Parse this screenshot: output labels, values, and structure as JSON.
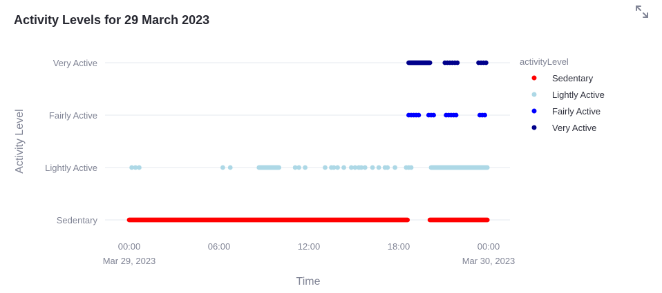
{
  "header": {
    "title": "Activity Levels for 29 March 2023",
    "fullscreen_icon": "expand-icon"
  },
  "chart_data": {
    "type": "scatter",
    "title": "Activity Levels for 29 March 2023",
    "xlabel": "Time",
    "ylabel": "Activity Level",
    "x_ticks": [
      {
        "value": "2023-03-29 00:00",
        "label": "00:00",
        "sublabel": "Mar 29, 2023"
      },
      {
        "value": "2023-03-29 06:00",
        "label": "06:00",
        "sublabel": ""
      },
      {
        "value": "2023-03-29 12:00",
        "label": "12:00",
        "sublabel": ""
      },
      {
        "value": "2023-03-29 18:00",
        "label": "18:00",
        "sublabel": ""
      },
      {
        "value": "2023-03-30 00:00",
        "label": "00:00",
        "sublabel": "Mar 30, 2023"
      }
    ],
    "xlim": [
      "2023-03-28 22:35",
      "2023-03-30 01:23"
    ],
    "categories": [
      "Sedentary",
      "Lightly Active",
      "Fairly Active",
      "Very Active"
    ],
    "grid": true,
    "legend_title": "activityLevel",
    "legend_position": "right",
    "series": [
      {
        "name": "Sedentary",
        "color": "#ff0000",
        "ranges": [
          [
            "2023-03-29 00:00",
            "2023-03-29 18:35"
          ],
          [
            "2023-03-29 20:05",
            "2023-03-29 23:55"
          ]
        ],
        "points": []
      },
      {
        "name": "Lightly Active",
        "color": "#add8e6",
        "ranges": [
          [
            "2023-03-29 08:40",
            "2023-03-29 10:00"
          ],
          [
            "2023-03-29 20:10",
            "2023-03-29 23:55"
          ]
        ],
        "points": [
          "2023-03-29 00:10",
          "2023-03-29 00:25",
          "2023-03-29 00:40",
          "2023-03-29 06:15",
          "2023-03-29 06:45",
          "2023-03-29 11:05",
          "2023-03-29 11:20",
          "2023-03-29 11:45",
          "2023-03-29 13:05",
          "2023-03-29 13:30",
          "2023-03-29 13:40",
          "2023-03-29 13:55",
          "2023-03-29 14:20",
          "2023-03-29 14:50",
          "2023-03-29 15:05",
          "2023-03-29 15:20",
          "2023-03-29 15:30",
          "2023-03-29 15:45",
          "2023-03-29 16:15",
          "2023-03-29 16:40",
          "2023-03-29 17:05",
          "2023-03-29 17:15",
          "2023-03-29 17:45",
          "2023-03-29 18:30",
          "2023-03-29 18:40",
          "2023-03-29 18:50"
        ]
      },
      {
        "name": "Fairly Active",
        "color": "#0000ff",
        "ranges": [],
        "points": [
          "2023-03-29 18:40",
          "2023-03-29 18:50",
          "2023-03-29 19:00",
          "2023-03-29 19:10",
          "2023-03-29 19:20",
          "2023-03-29 20:00",
          "2023-03-29 20:10",
          "2023-03-29 20:20",
          "2023-03-29 21:10",
          "2023-03-29 21:20",
          "2023-03-29 21:30",
          "2023-03-29 21:40",
          "2023-03-29 21:50",
          "2023-03-29 23:25",
          "2023-03-29 23:35",
          "2023-03-29 23:45"
        ]
      },
      {
        "name": "Very Active",
        "color": "#00008b",
        "ranges": [
          [
            "2023-03-29 18:40",
            "2023-03-29 20:05"
          ]
        ],
        "points": [
          "2023-03-29 21:05",
          "2023-03-29 21:15",
          "2023-03-29 21:25",
          "2023-03-29 21:35",
          "2023-03-29 21:45",
          "2023-03-29 21:55",
          "2023-03-29 23:20",
          "2023-03-29 23:30",
          "2023-03-29 23:40",
          "2023-03-29 23:50"
        ]
      }
    ]
  }
}
